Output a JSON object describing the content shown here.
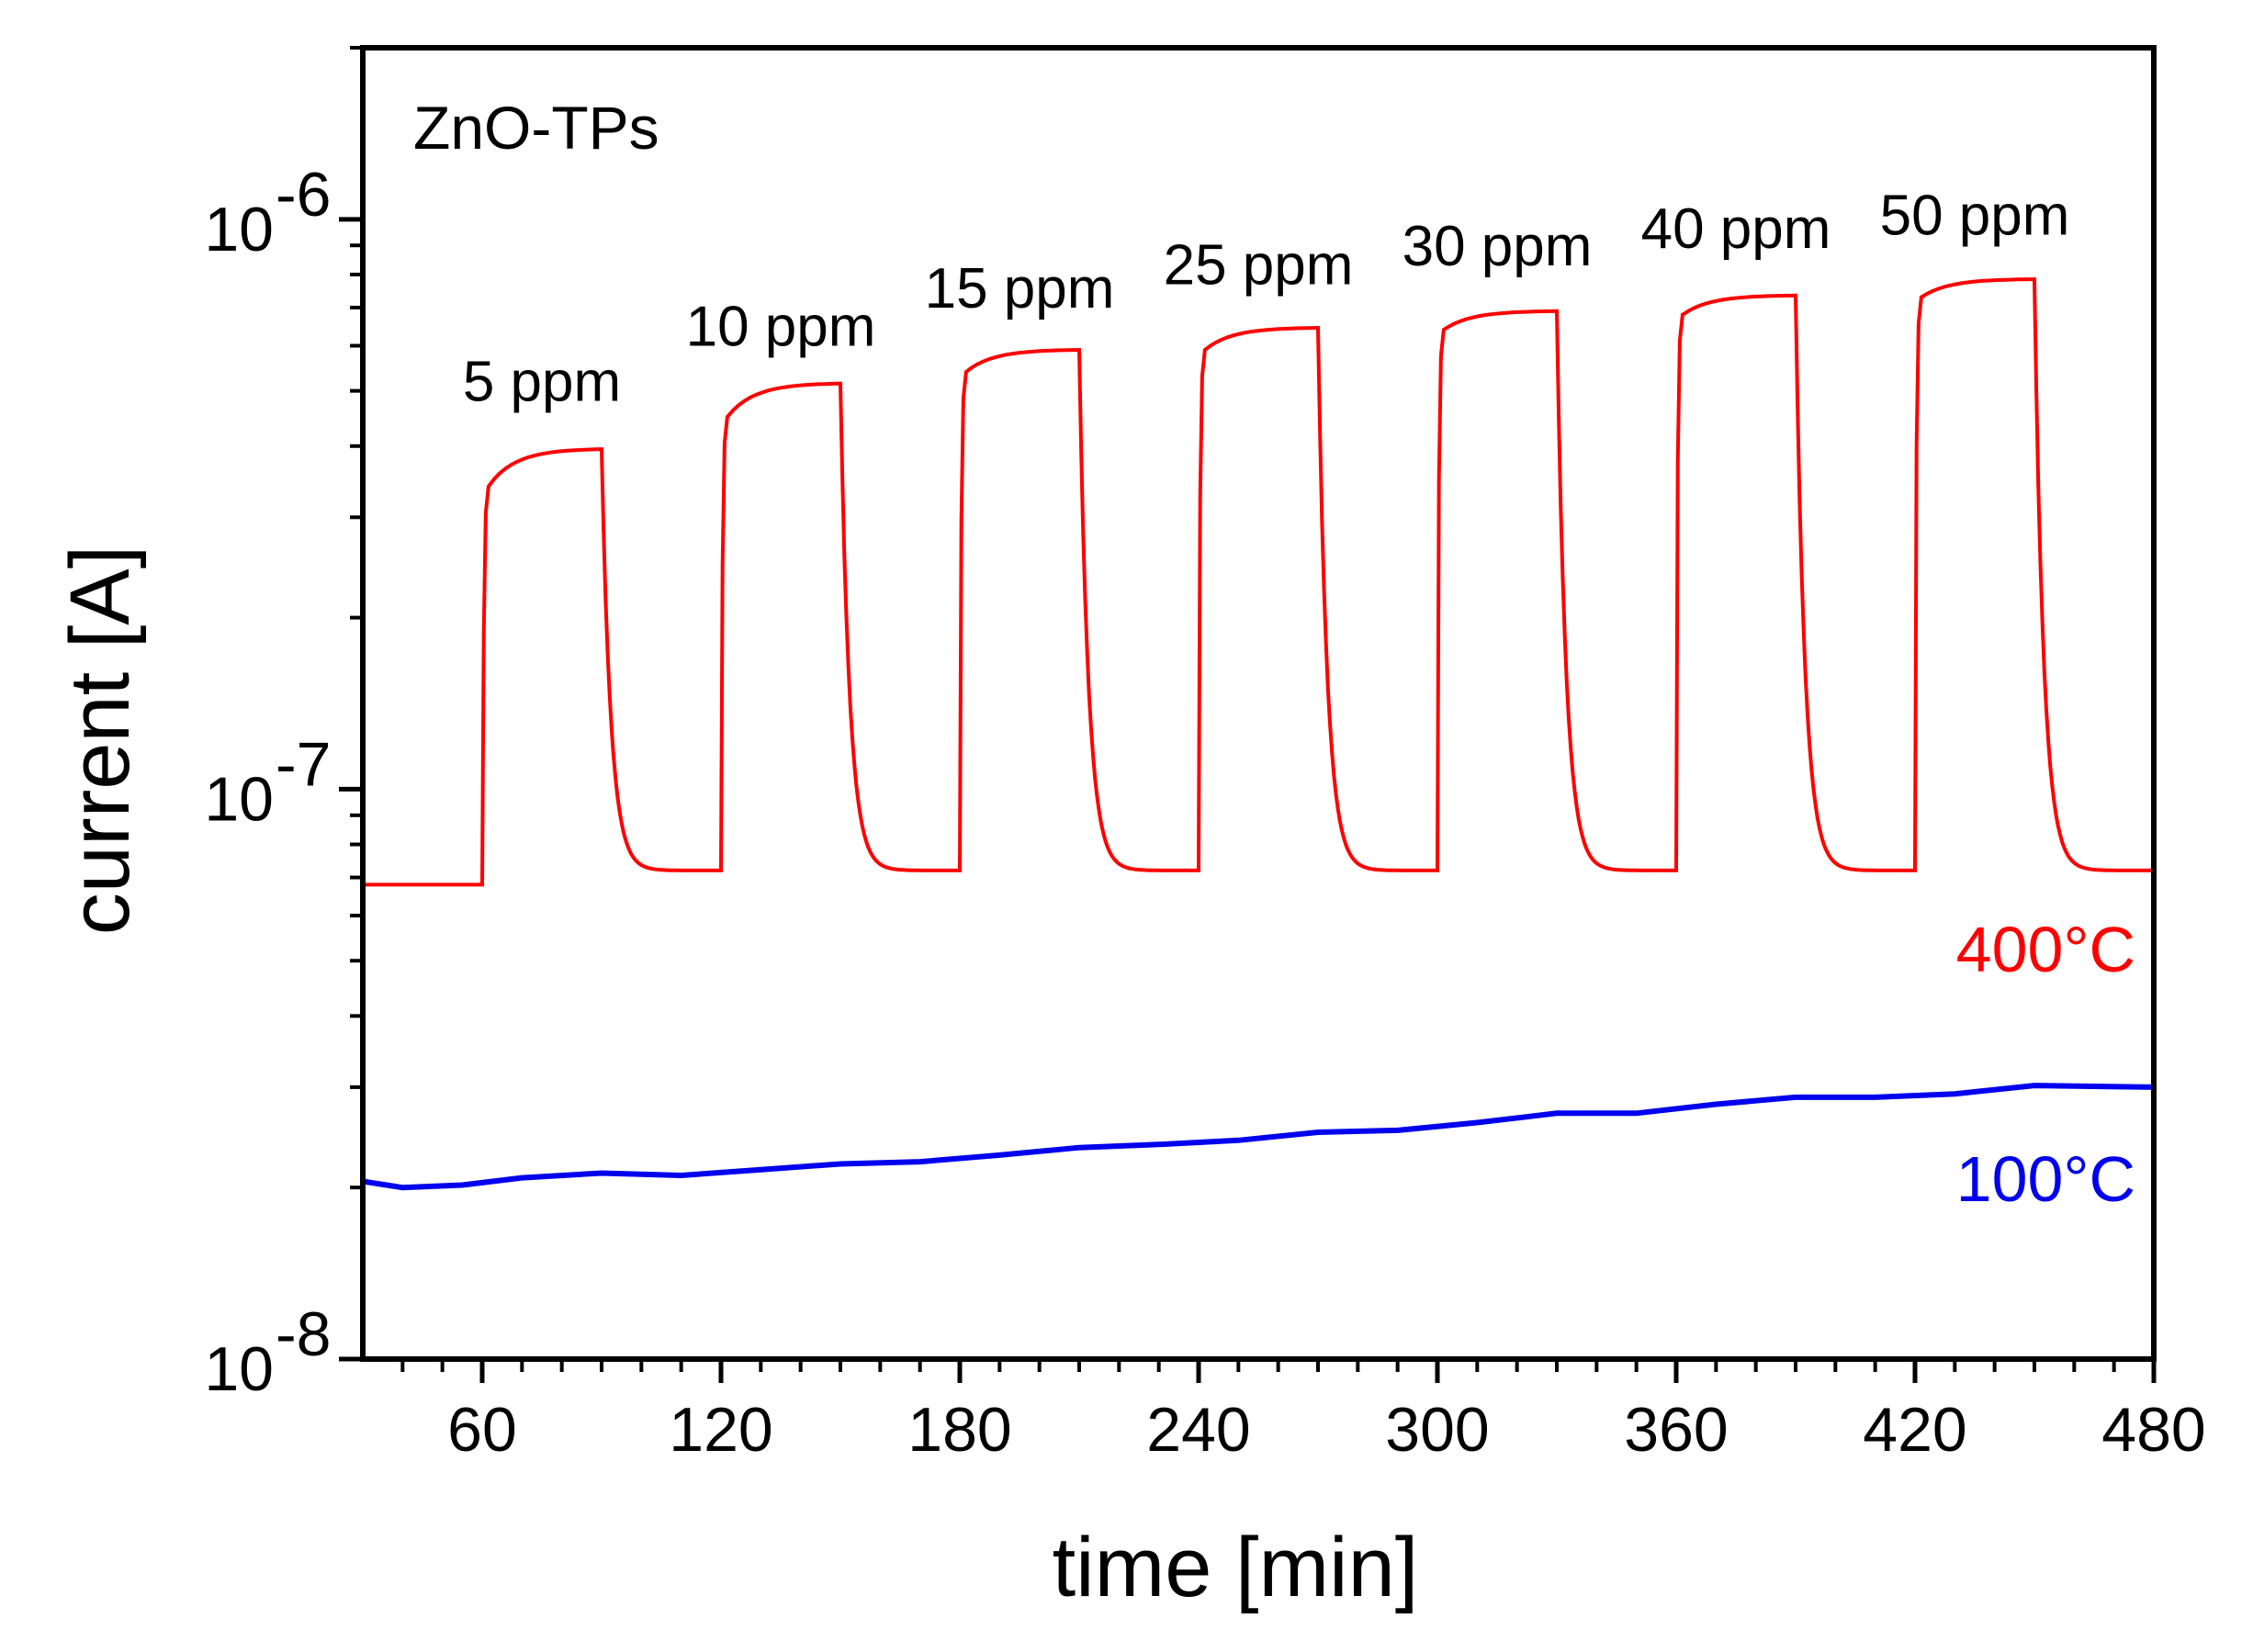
{
  "chart_data": {
    "type": "line",
    "title": "ZnO-TPs",
    "xlabel": "time [min]",
    "ylabel": "current [A]",
    "xlim": [
      30,
      480
    ],
    "ylim": [
      1e-08,
      2e-06
    ],
    "yscale": "log",
    "x_ticks": [
      60,
      120,
      180,
      240,
      300,
      360,
      420,
      480
    ],
    "x_tick_labels": [
      "60",
      "120",
      "180",
      "240",
      "300",
      "360",
      "420",
      "480"
    ],
    "y_ticks": [
      {
        "value": 1e-06,
        "base": "10",
        "exp": "-6"
      },
      {
        "value": 1e-07,
        "base": "10",
        "exp": "-7"
      },
      {
        "value": 1e-08,
        "base": "10",
        "exp": "-8"
      }
    ],
    "annotations": [
      {
        "text": "5 ppm",
        "x": 75,
        "y": 4.8e-07
      },
      {
        "text": "10 ppm",
        "x": 135,
        "y": 6e-07
      },
      {
        "text": "15 ppm",
        "x": 195,
        "y": 7e-07
      },
      {
        "text": "25 ppm",
        "x": 255,
        "y": 7.7e-07
      },
      {
        "text": "30 ppm",
        "x": 315,
        "y": 8.3e-07
      },
      {
        "text": "40 ppm",
        "x": 375,
        "y": 8.9e-07
      },
      {
        "text": "50 ppm",
        "x": 435,
        "y": 9.4e-07
      }
    ],
    "series": [
      {
        "name": "400°C",
        "color": "#ff0000",
        "baseline": 7.2e-08,
        "initial": 6.8e-08,
        "pulses": [
          {
            "on": 60,
            "off": 90,
            "rise": 3.4e-07,
            "peak": 3.95e-07
          },
          {
            "on": 120,
            "off": 150,
            "rise": 4.5e-07,
            "peak": 5.15e-07
          },
          {
            "on": 180,
            "off": 210,
            "rise": 5.4e-07,
            "peak": 5.9e-07
          },
          {
            "on": 240,
            "off": 270,
            "rise": 5.9e-07,
            "peak": 6.45e-07
          },
          {
            "on": 300,
            "off": 330,
            "rise": 6.4e-07,
            "peak": 6.9e-07
          },
          {
            "on": 360,
            "off": 390,
            "rise": 6.8e-07,
            "peak": 7.35e-07
          },
          {
            "on": 420,
            "off": 450,
            "rise": 7.3e-07,
            "peak": 7.85e-07
          }
        ]
      },
      {
        "name": "100°C",
        "color": "#0000ee",
        "x": [
          30,
          40,
          55,
          70,
          90,
          110,
          130,
          150,
          170,
          190,
          210,
          230,
          250,
          270,
          290,
          310,
          330,
          350,
          370,
          390,
          410,
          430,
          450,
          480
        ],
        "y": [
          2.05e-08,
          2e-08,
          2.02e-08,
          2.08e-08,
          2.12e-08,
          2.1e-08,
          2.15e-08,
          2.2e-08,
          2.22e-08,
          2.28e-08,
          2.35e-08,
          2.38e-08,
          2.42e-08,
          2.5e-08,
          2.52e-08,
          2.6e-08,
          2.7e-08,
          2.7e-08,
          2.8e-08,
          2.88e-08,
          2.88e-08,
          2.92e-08,
          3.02e-08,
          3e-08
        ]
      }
    ]
  }
}
